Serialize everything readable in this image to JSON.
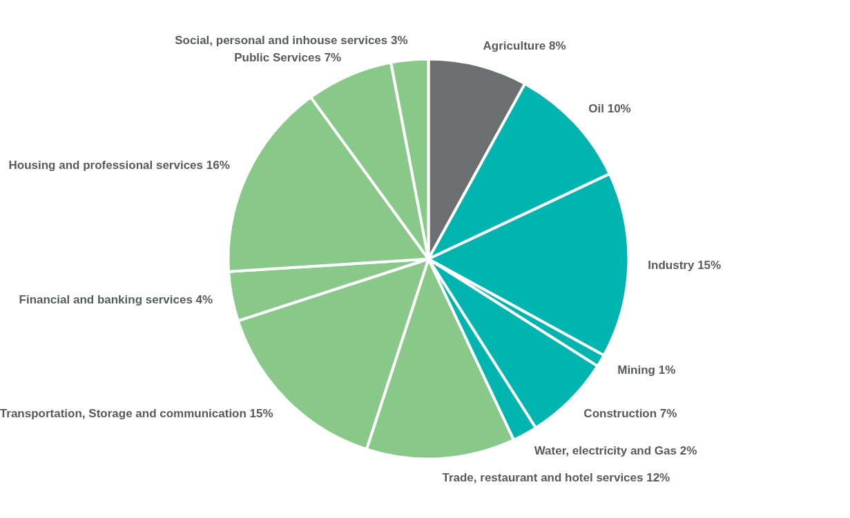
{
  "chart_data": {
    "type": "pie",
    "categories": [
      "Agriculture",
      "Oil",
      "Industry",
      "Mining",
      "Construction",
      "Water, electricity and Gas",
      "Trade, restaurant and hotel services",
      "Transportation, Storage and communication",
      "Financial and banking services",
      "Housing and professional services",
      "Public Services",
      "Social, personal and inhouse services"
    ],
    "values": [
      8,
      10,
      15,
      1,
      7,
      2,
      12,
      15,
      4,
      16,
      7,
      3
    ],
    "value_labels": [
      "8%",
      "10%",
      "15%",
      "1%",
      "7%",
      "2%",
      "12%",
      "15%",
      "4%",
      "16%",
      "7%",
      "3%"
    ],
    "colors": [
      "#6d6e70",
      "#00b5b0",
      "#00b5b0",
      "#00b5b0",
      "#00b5b0",
      "#00b5b0",
      "#88c888",
      "#88c888",
      "#88c888",
      "#88c888",
      "#88c888",
      "#88c888"
    ]
  }
}
